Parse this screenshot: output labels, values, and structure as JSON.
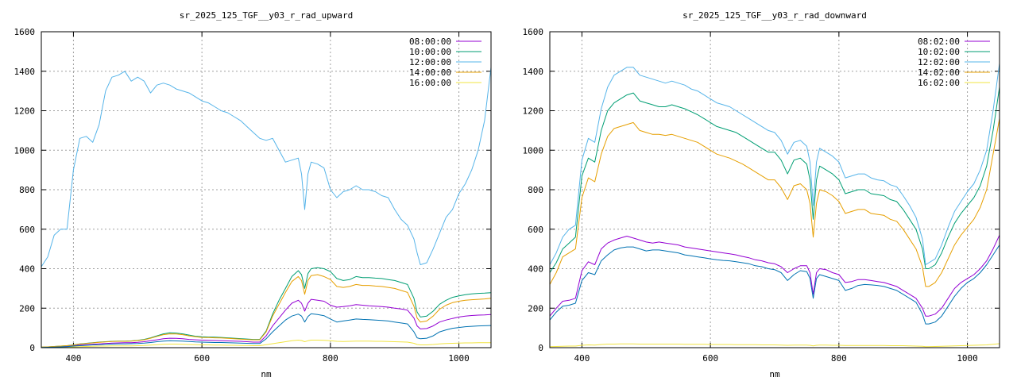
{
  "chart_data": [
    {
      "type": "line",
      "title": "sr_2025_125_TGF__y03_r_rad_upward",
      "xlabel": "nm",
      "ylabel": "",
      "xlim": [
        350,
        1050
      ],
      "ylim": [
        0,
        1600
      ],
      "xticks": [
        400,
        600,
        800,
        1000
      ],
      "yticks": [
        0,
        200,
        400,
        600,
        800,
        1000,
        1200,
        1400,
        1600
      ],
      "grid": true,
      "legend_position": "top-right",
      "x": [
        350,
        360,
        370,
        380,
        390,
        400,
        410,
        420,
        430,
        440,
        450,
        460,
        470,
        480,
        490,
        500,
        510,
        520,
        530,
        540,
        550,
        560,
        570,
        580,
        590,
        600,
        610,
        620,
        630,
        640,
        650,
        660,
        670,
        680,
        690,
        700,
        710,
        720,
        730,
        740,
        750,
        755,
        760,
        765,
        770,
        780,
        790,
        800,
        810,
        820,
        830,
        840,
        850,
        860,
        870,
        880,
        890,
        900,
        910,
        920,
        930,
        935,
        940,
        950,
        960,
        970,
        980,
        990,
        1000,
        1010,
        1020,
        1030,
        1040,
        1050
      ],
      "series": [
        {
          "name": "08:00:00",
          "color": "#9400d3",
          "values": [
            2,
            3,
            4,
            5,
            7,
            10,
            13,
            15,
            17,
            19,
            21,
            23,
            24,
            25,
            25,
            27,
            30,
            35,
            40,
            45,
            48,
            47,
            45,
            42,
            40,
            38,
            37,
            36,
            35,
            34,
            33,
            32,
            30,
            28,
            28,
            60,
            110,
            150,
            190,
            225,
            240,
            225,
            185,
            225,
            245,
            240,
            235,
            215,
            205,
            208,
            212,
            218,
            215,
            212,
            210,
            208,
            205,
            200,
            196,
            190,
            150,
            110,
            95,
            97,
            110,
            130,
            140,
            148,
            155,
            160,
            163,
            165,
            166,
            168
          ]
        },
        {
          "name": "10:00:00",
          "color": "#009e73",
          "values": [
            3,
            4,
            6,
            8,
            10,
            14,
            19,
            22,
            25,
            28,
            30,
            32,
            33,
            33,
            34,
            37,
            42,
            50,
            60,
            70,
            75,
            74,
            70,
            64,
            58,
            55,
            54,
            53,
            52,
            50,
            48,
            46,
            44,
            42,
            42,
            85,
            170,
            240,
            300,
            360,
            390,
            370,
            300,
            375,
            400,
            405,
            400,
            385,
            350,
            340,
            345,
            360,
            355,
            355,
            352,
            350,
            345,
            340,
            330,
            320,
            250,
            180,
            155,
            160,
            185,
            220,
            240,
            255,
            262,
            268,
            272,
            275,
            276,
            278
          ]
        },
        {
          "name": "12:00:00",
          "color": "#56b4e9",
          "values": [
            410,
            460,
            570,
            600,
            600,
            900,
            1060,
            1070,
            1040,
            1130,
            1300,
            1370,
            1380,
            1400,
            1350,
            1370,
            1350,
            1290,
            1330,
            1340,
            1330,
            1310,
            1300,
            1290,
            1270,
            1250,
            1240,
            1220,
            1200,
            1190,
            1170,
            1150,
            1120,
            1090,
            1060,
            1050,
            1060,
            1000,
            940,
            950,
            960,
            880,
            700,
            880,
            940,
            930,
            910,
            800,
            760,
            790,
            800,
            820,
            800,
            800,
            790,
            770,
            760,
            700,
            650,
            620,
            550,
            480,
            420,
            430,
            500,
            580,
            660,
            700,
            780,
            830,
            900,
            1000,
            1150,
            1420
          ]
        },
        {
          "name": "14:00:00",
          "color": "#e69f00",
          "values": [
            3,
            4,
            6,
            8,
            10,
            13,
            18,
            21,
            24,
            27,
            29,
            31,
            32,
            32,
            33,
            36,
            40,
            48,
            57,
            66,
            70,
            69,
            66,
            60,
            55,
            52,
            51,
            50,
            49,
            47,
            45,
            43,
            41,
            40,
            40,
            80,
            160,
            220,
            280,
            335,
            360,
            340,
            270,
            340,
            365,
            370,
            360,
            345,
            310,
            305,
            310,
            320,
            315,
            315,
            312,
            310,
            305,
            300,
            290,
            280,
            210,
            150,
            130,
            135,
            160,
            195,
            215,
            228,
            235,
            240,
            243,
            245,
            247,
            250
          ]
        },
        {
          "name": "16:00:00",
          "color": "#f0e442",
          "values": [
            1,
            1,
            2,
            2,
            3,
            4,
            5,
            6,
            7,
            8,
            8,
            9,
            9,
            9,
            9,
            10,
            11,
            13,
            15,
            17,
            18,
            18,
            17,
            16,
            15,
            14,
            14,
            13,
            13,
            12,
            12,
            11,
            11,
            10,
            10,
            15,
            20,
            25,
            30,
            35,
            38,
            36,
            30,
            35,
            38,
            38,
            37,
            35,
            32,
            31,
            32,
            33,
            33,
            33,
            32,
            32,
            31,
            30,
            29,
            28,
            22,
            16,
            14,
            14,
            16,
            19,
            21,
            22,
            23,
            24,
            24,
            25,
            25,
            25
          ]
        },
        {
          "name": "",
          "color": "#0072b2",
          "values": [
            1,
            2,
            3,
            4,
            5,
            8,
            10,
            12,
            14,
            15,
            17,
            18,
            19,
            19,
            20,
            21,
            23,
            26,
            30,
            33,
            35,
            34,
            33,
            31,
            29,
            28,
            27,
            26,
            26,
            25,
            24,
            23,
            22,
            21,
            21,
            45,
            80,
            110,
            140,
            160,
            170,
            160,
            130,
            158,
            172,
            168,
            162,
            145,
            130,
            135,
            140,
            145,
            143,
            142,
            140,
            138,
            135,
            130,
            125,
            120,
            80,
            50,
            45,
            48,
            60,
            80,
            90,
            98,
            102,
            106,
            108,
            110,
            111,
            112
          ]
        }
      ]
    },
    {
      "type": "line",
      "title": "sr_2025_125_TGF__y03_r_rad_downward",
      "xlabel": "nm",
      "ylabel": "",
      "xlim": [
        350,
        1050
      ],
      "ylim": [
        0,
        1600
      ],
      "xticks": [
        400,
        600,
        800,
        1000
      ],
      "yticks": [
        0,
        200,
        400,
        600,
        800,
        1000,
        1200,
        1400,
        1600
      ],
      "grid": true,
      "legend_position": "top-right",
      "x": [
        350,
        360,
        370,
        380,
        390,
        400,
        410,
        420,
        430,
        440,
        450,
        460,
        470,
        480,
        490,
        500,
        510,
        520,
        530,
        540,
        550,
        560,
        570,
        580,
        590,
        600,
        610,
        620,
        630,
        640,
        650,
        660,
        670,
        680,
        690,
        700,
        710,
        720,
        730,
        740,
        750,
        755,
        760,
        765,
        770,
        780,
        790,
        800,
        810,
        820,
        830,
        840,
        850,
        860,
        870,
        880,
        890,
        900,
        910,
        920,
        930,
        935,
        940,
        950,
        960,
        970,
        980,
        990,
        1000,
        1010,
        1020,
        1030,
        1040,
        1050
      ],
      "series": [
        {
          "name": "08:02:00",
          "color": "#9400d3",
          "values": [
            160,
            200,
            235,
            240,
            250,
            390,
            435,
            420,
            500,
            530,
            545,
            555,
            565,
            555,
            545,
            535,
            530,
            535,
            530,
            525,
            520,
            510,
            505,
            500,
            495,
            490,
            485,
            480,
            475,
            470,
            462,
            455,
            445,
            440,
            430,
            425,
            410,
            380,
            400,
            415,
            415,
            380,
            270,
            380,
            400,
            395,
            380,
            370,
            330,
            335,
            345,
            345,
            340,
            335,
            330,
            320,
            310,
            290,
            270,
            250,
            200,
            160,
            160,
            170,
            200,
            250,
            300,
            330,
            350,
            370,
            400,
            440,
            500,
            570
          ]
        },
        {
          "name": "10:02:00",
          "color": "#009e73",
          "values": [
            380,
            430,
            500,
            530,
            560,
            870,
            960,
            940,
            1100,
            1200,
            1240,
            1260,
            1280,
            1290,
            1250,
            1240,
            1230,
            1220,
            1220,
            1230,
            1220,
            1210,
            1195,
            1180,
            1160,
            1140,
            1120,
            1110,
            1100,
            1090,
            1070,
            1050,
            1030,
            1010,
            990,
            990,
            950,
            880,
            950,
            960,
            930,
            850,
            650,
            850,
            920,
            900,
            880,
            850,
            780,
            790,
            800,
            800,
            780,
            775,
            770,
            750,
            740,
            700,
            650,
            600,
            500,
            400,
            400,
            420,
            480,
            560,
            630,
            680,
            720,
            760,
            820,
            920,
            1100,
            1320
          ]
        },
        {
          "name": "12:02:00",
          "color": "#56b4e9",
          "values": [
            420,
            480,
            560,
            600,
            620,
            950,
            1060,
            1040,
            1210,
            1320,
            1380,
            1400,
            1420,
            1420,
            1380,
            1370,
            1360,
            1350,
            1340,
            1350,
            1340,
            1330,
            1310,
            1300,
            1280,
            1260,
            1240,
            1230,
            1220,
            1200,
            1180,
            1160,
            1140,
            1120,
            1100,
            1090,
            1050,
            980,
            1040,
            1050,
            1020,
            940,
            720,
            940,
            1010,
            990,
            970,
            940,
            860,
            870,
            880,
            880,
            860,
            850,
            845,
            825,
            815,
            770,
            720,
            660,
            550,
            420,
            430,
            450,
            520,
            610,
            690,
            740,
            790,
            830,
            900,
            1000,
            1200,
            1440
          ]
        },
        {
          "name": "14:02:00",
          "color": "#e69f00",
          "values": [
            320,
            380,
            460,
            480,
            500,
            760,
            860,
            840,
            980,
            1070,
            1110,
            1120,
            1130,
            1140,
            1100,
            1090,
            1080,
            1080,
            1075,
            1080,
            1070,
            1060,
            1050,
            1040,
            1020,
            1000,
            980,
            970,
            960,
            945,
            930,
            910,
            890,
            870,
            850,
            850,
            810,
            750,
            820,
            830,
            800,
            730,
            560,
            730,
            800,
            790,
            770,
            740,
            680,
            690,
            700,
            700,
            680,
            675,
            670,
            650,
            640,
            600,
            550,
            500,
            410,
            310,
            310,
            330,
            380,
            450,
            520,
            570,
            610,
            650,
            710,
            800,
            980,
            1160
          ]
        },
        {
          "name": "16:02:00",
          "color": "#f0e442",
          "values": [
            5,
            6,
            7,
            8,
            8,
            12,
            14,
            13,
            16,
            18,
            18,
            19,
            19,
            19,
            18,
            18,
            18,
            18,
            18,
            18,
            18,
            17,
            17,
            17,
            17,
            16,
            16,
            16,
            16,
            15,
            15,
            15,
            15,
            14,
            14,
            14,
            13,
            12,
            13,
            13,
            13,
            12,
            9,
            12,
            13,
            13,
            12,
            12,
            11,
            11,
            11,
            11,
            11,
            11,
            11,
            10,
            10,
            10,
            9,
            8,
            7,
            5,
            5,
            6,
            7,
            8,
            9,
            10,
            11,
            12,
            13,
            14,
            17,
            20
          ]
        },
        {
          "name": "",
          "color": "#0072b2",
          "values": [
            140,
            180,
            210,
            215,
            225,
            340,
            380,
            370,
            440,
            470,
            495,
            505,
            510,
            510,
            500,
            490,
            495,
            495,
            490,
            485,
            480,
            470,
            465,
            460,
            455,
            450,
            445,
            442,
            440,
            435,
            430,
            425,
            415,
            410,
            400,
            395,
            380,
            340,
            370,
            390,
            385,
            350,
            250,
            350,
            370,
            360,
            350,
            340,
            290,
            300,
            315,
            320,
            318,
            315,
            310,
            300,
            290,
            270,
            250,
            230,
            170,
            120,
            120,
            130,
            160,
            210,
            260,
            300,
            330,
            350,
            380,
            420,
            470,
            520
          ]
        }
      ]
    }
  ]
}
